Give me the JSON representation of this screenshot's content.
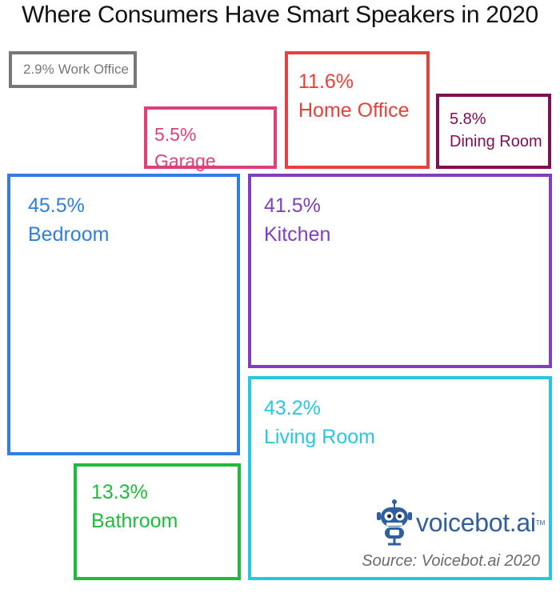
{
  "chart_data": {
    "type": "treemap",
    "title": "Where Consumers Have Smart Speakers in 2020",
    "rooms": [
      {
        "id": "work-office",
        "pct": "2.9%",
        "name": "Work Office",
        "value": 2.9,
        "color": "#777777"
      },
      {
        "id": "garage",
        "pct": "5.5%",
        "name": "Garage",
        "value": 5.5,
        "color": "#e0407a"
      },
      {
        "id": "home-office",
        "pct": "11.6%",
        "name": "Home Office",
        "value": 11.6,
        "color": "#e8403a"
      },
      {
        "id": "dining-room",
        "pct": "5.8%",
        "name": "Dining Room",
        "value": 5.8,
        "color": "#800f56"
      },
      {
        "id": "bedroom",
        "pct": "45.5%",
        "name": "Bedroom",
        "value": 45.5,
        "color": "#2f7fe2"
      },
      {
        "id": "kitchen",
        "pct": "41.5%",
        "name": "Kitchen",
        "value": 41.5,
        "color": "#7f3fc0"
      },
      {
        "id": "living-room",
        "pct": "43.2%",
        "name": "Living Room",
        "value": 43.2,
        "color": "#27c7e2"
      },
      {
        "id": "bathroom",
        "pct": "13.3%",
        "name": "Bathroom",
        "value": 13.3,
        "color": "#1ebc3c"
      }
    ]
  },
  "brand": {
    "word": "voicebot.ai",
    "tm": "TM",
    "color": "#2f5f9e"
  },
  "source": "Source: Voicebot.ai 2020"
}
